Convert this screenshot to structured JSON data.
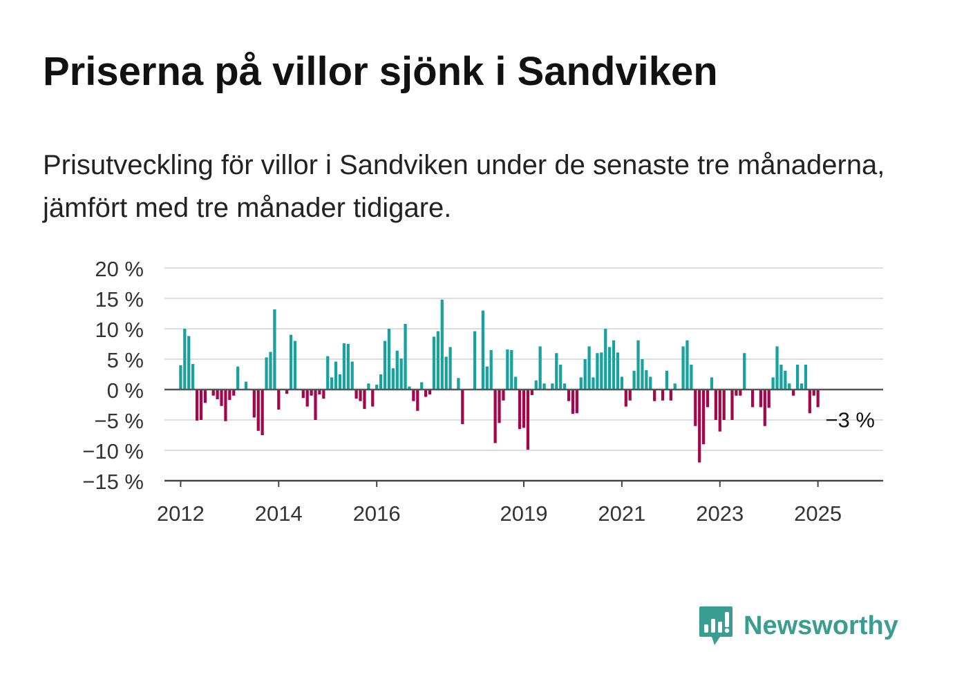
{
  "title": "Priserna på villor sjönk i Sandviken",
  "subtitle": "Prisutveckling för villor i Sandviken under de senaste tre månaderna, jämfört med tre månader tidigare.",
  "brand": {
    "name": "Newsworthy",
    "icon": "newsworthy-logo-icon"
  },
  "colors": {
    "positive": "#17a2a0",
    "negative": "#a3064a",
    "grid": "#dddddd",
    "axis": "#444444",
    "brand": "#3a9d91"
  },
  "chart_data": {
    "type": "bar",
    "grid": true,
    "y_unit": "%",
    "ylim": [
      -15,
      20
    ],
    "yticks": [
      20,
      15,
      10,
      5,
      0,
      -5,
      -10,
      -15
    ],
    "ytick_labels": [
      "20 %",
      "15 %",
      "10 %",
      "5 %",
      "0 %",
      "−5 %",
      "−10 %",
      "−15 %"
    ],
    "xlim": [
      2011.67,
      2026.33
    ],
    "xticks": [
      2012,
      2014,
      2016,
      2019,
      2021,
      2023,
      2025
    ],
    "xtick_labels": [
      "2012",
      "2014",
      "2016",
      "2019",
      "2021",
      "2023",
      "2025"
    ],
    "annotation": {
      "text": "−3 %",
      "value": -3
    },
    "values": [
      4,
      10,
      8.8,
      4.2,
      -5.1,
      -5,
      -2.2,
      0,
      -1,
      -1.6,
      -2.7,
      -5.2,
      -1.7,
      -1,
      3.8,
      0,
      1.3,
      0,
      -4.6,
      -6.8,
      -7.5,
      5.3,
      6.2,
      13.2,
      -3.3,
      0,
      -0.7,
      9,
      8,
      0,
      -1.4,
      -2.8,
      -1,
      -5,
      -0.8,
      -1.5,
      5.5,
      2,
      4.6,
      2.5,
      7.6,
      7.5,
      4.6,
      -1.5,
      -1.9,
      -3.2,
      1,
      -2.8,
      0.8,
      2.5,
      8,
      10,
      3.5,
      6.4,
      5.1,
      10.8,
      0.5,
      -1.9,
      -3.5,
      1.2,
      -1.2,
      -0.8,
      8.7,
      9.6,
      14.8,
      5.4,
      7,
      0,
      1.9,
      -5.7,
      0,
      0,
      9.6,
      0,
      13,
      3.8,
      6.5,
      -8.8,
      -5.5,
      -1.8,
      6.6,
      6.5,
      2.1,
      -6.5,
      -6.3,
      -9.9,
      -0.9,
      1.5,
      7.1,
      1,
      0,
      1,
      6,
      4.1,
      1,
      -1.9,
      -4,
      -3.9,
      2,
      5,
      7.1,
      2,
      6,
      6.1,
      10,
      7,
      8.1,
      6.1,
      2.1,
      -2.8,
      -1.8,
      3.1,
      8.1,
      5,
      3.2,
      2.1,
      -1.9,
      0,
      -1.8,
      3.1,
      -1.8,
      1,
      0,
      7.1,
      8.1,
      4.1,
      -6,
      -12,
      -9,
      -2.9,
      2,
      -5,
      -6.9,
      -5,
      0,
      -5,
      -1,
      -1,
      6,
      0,
      -2.9,
      0,
      -2.9,
      -6,
      -3,
      2,
      7.1,
      4.1,
      3.1,
      1,
      -1,
      4.1,
      1,
      4.1,
      -3.9,
      -1,
      -2.9
    ]
  }
}
